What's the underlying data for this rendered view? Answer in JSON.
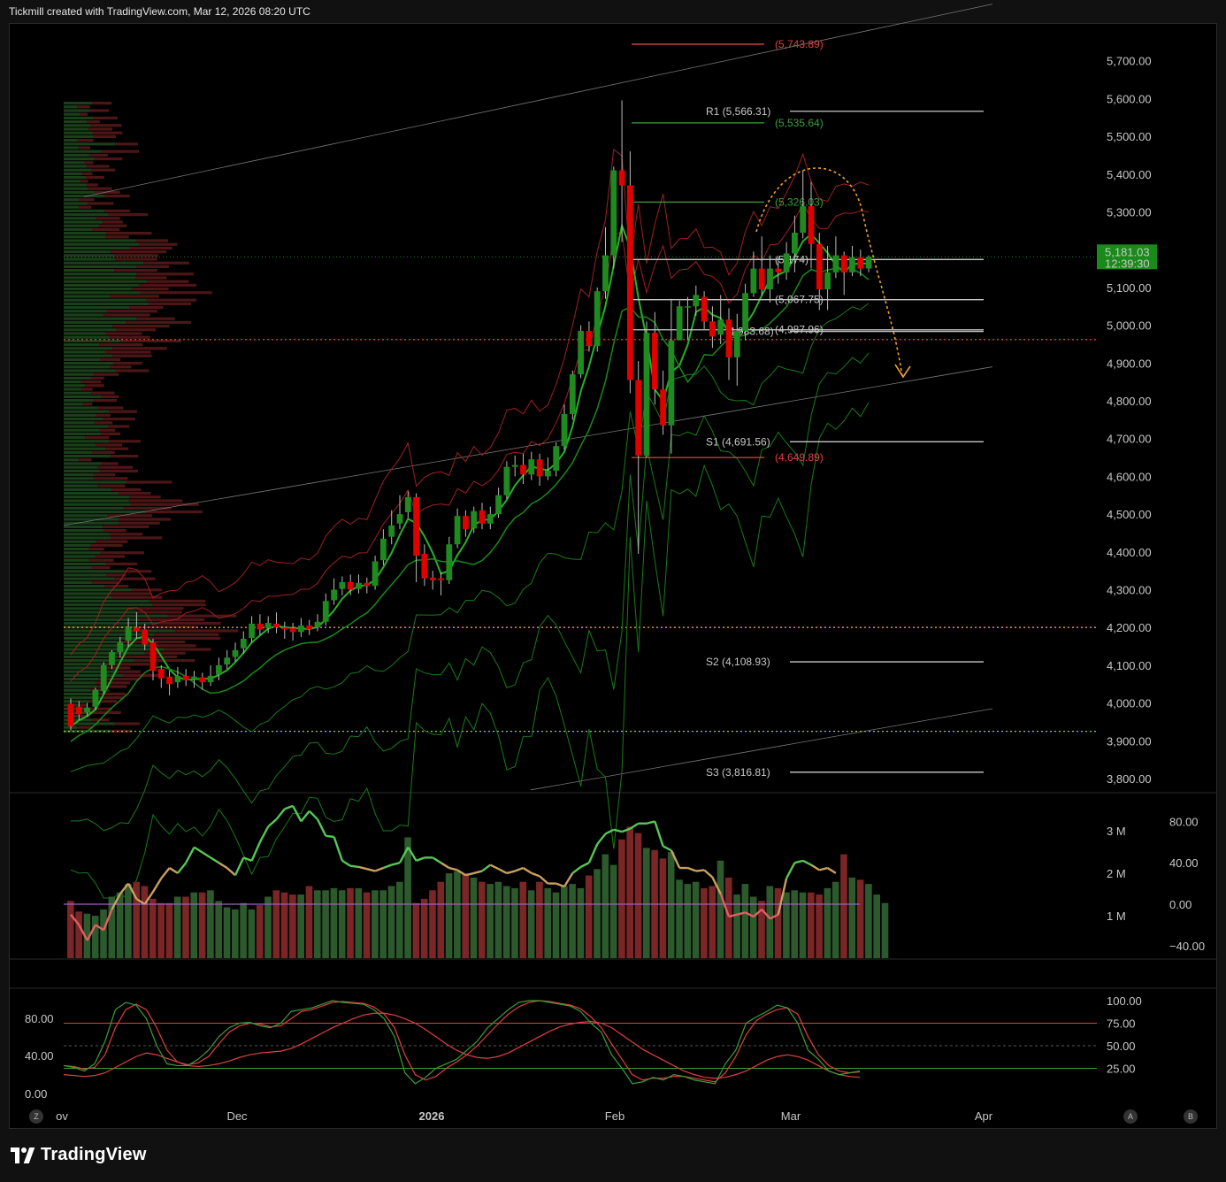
{
  "header": {
    "title": "Tickmill created with TradingView.com, Mar 12, 2026 08:20 UTC"
  },
  "footer": {
    "brand": "TradingView"
  },
  "buttons": {
    "zoom": "Z",
    "auto": "A",
    "bottom_b": "B"
  },
  "colors": {
    "bull": "#1f8a1f",
    "bear": "#e00000",
    "background": "#000000",
    "forecast": "#f0a030",
    "resistance": "#e04040",
    "support_green": "#3aa03a",
    "pivot_line": "#c8c8c8",
    "price_tag": "#1a8a1a"
  },
  "chart_data": [
    {
      "type": "candlestick",
      "title": "",
      "ylim": [
        3770,
        5860
      ],
      "y_ticks": [
        "5,700.00",
        "5,600.00",
        "5,500.00",
        "5,400.00",
        "5,300.00",
        "5,200.00",
        "5,100.00",
        "5,000.00",
        "4,900.00",
        "4,800.00",
        "4,700.00",
        "4,600.00",
        "4,500.00",
        "4,400.00",
        "4,300.00",
        "4,200.00",
        "4,100.00",
        "4,000.00",
        "3,900.00",
        "3,800.00"
      ],
      "x_ticks": [
        "ov",
        "Dec",
        "2026",
        "Feb",
        "Mar",
        "Apr"
      ],
      "last_price": "5,181.03",
      "countdown": "12:39:30",
      "candles": [
        [
          3998,
          3938,
          4012,
          3928
        ],
        [
          3990,
          3970,
          4005,
          3955
        ],
        [
          3975,
          3988,
          4000,
          3965
        ],
        [
          3990,
          4035,
          4040,
          3982
        ],
        [
          4032,
          4100,
          4108,
          4025
        ],
        [
          4100,
          4135,
          4140,
          4090
        ],
        [
          4135,
          4160,
          4175,
          4120
        ],
        [
          4165,
          4200,
          4225,
          4150
        ],
        [
          4200,
          4190,
          4240,
          4170
        ],
        [
          4195,
          4155,
          4210,
          4140
        ],
        [
          4160,
          4085,
          4170,
          4060
        ],
        [
          4090,
          4065,
          4100,
          4040
        ],
        [
          4070,
          4050,
          4085,
          4020
        ],
        [
          4055,
          4072,
          4095,
          4040
        ],
        [
          4072,
          4060,
          4090,
          4045
        ],
        [
          4062,
          4070,
          4085,
          4040
        ],
        [
          4068,
          4055,
          4080,
          4035
        ],
        [
          4055,
          4072,
          4100,
          4045
        ],
        [
          4075,
          4100,
          4120,
          4060
        ],
        [
          4102,
          4120,
          4140,
          4090
        ],
        [
          4122,
          4140,
          4160,
          4110
        ],
        [
          4145,
          4170,
          4190,
          4130
        ],
        [
          4172,
          4210,
          4230,
          4160
        ],
        [
          4210,
          4195,
          4235,
          4180
        ],
        [
          4198,
          4212,
          4230,
          4185
        ],
        [
          4210,
          4200,
          4240,
          4185
        ],
        [
          4200,
          4195,
          4215,
          4170
        ],
        [
          4198,
          4188,
          4212,
          4165
        ],
        [
          4188,
          4205,
          4225,
          4175
        ],
        [
          4205,
          4195,
          4220,
          4180
        ],
        [
          4200,
          4215,
          4235,
          4190
        ],
        [
          4215,
          4270,
          4290,
          4205
        ],
        [
          4272,
          4300,
          4330,
          4260
        ],
        [
          4302,
          4320,
          4335,
          4285
        ],
        [
          4320,
          4300,
          4340,
          4285
        ],
        [
          4302,
          4318,
          4340,
          4290
        ],
        [
          4318,
          4310,
          4332,
          4290
        ],
        [
          4310,
          4375,
          4390,
          4300
        ],
        [
          4378,
          4435,
          4460,
          4365
        ],
        [
          4440,
          4470,
          4510,
          4420
        ],
        [
          4475,
          4500,
          4550,
          4460
        ],
        [
          4505,
          4545,
          4560,
          4490
        ],
        [
          4545,
          4390,
          4555,
          4320
        ],
        [
          4395,
          4330,
          4420,
          4310
        ],
        [
          4332,
          4325,
          4350,
          4300
        ],
        [
          4330,
          4325,
          4345,
          4285
        ],
        [
          4325,
          4420,
          4440,
          4315
        ],
        [
          4420,
          4495,
          4515,
          4410
        ],
        [
          4495,
          4460,
          4510,
          4440
        ],
        [
          4462,
          4508,
          4520,
          4450
        ],
        [
          4510,
          4475,
          4530,
          4460
        ],
        [
          4475,
          4500,
          4520,
          4460
        ],
        [
          4500,
          4550,
          4570,
          4490
        ],
        [
          4550,
          4625,
          4640,
          4540
        ],
        [
          4625,
          4630,
          4655,
          4600
        ],
        [
          4630,
          4605,
          4660,
          4580
        ],
        [
          4605,
          4645,
          4665,
          4590
        ],
        [
          4645,
          4600,
          4660,
          4575
        ],
        [
          4600,
          4615,
          4650,
          4590
        ],
        [
          4615,
          4680,
          4690,
          4600
        ],
        [
          4680,
          4765,
          4790,
          4670
        ],
        [
          4765,
          4870,
          4880,
          4750
        ],
        [
          4870,
          4985,
          5000,
          4860
        ],
        [
          4985,
          4945,
          5010,
          4930
        ],
        [
          4945,
          5090,
          5100,
          4930
        ],
        [
          5090,
          5185,
          5260,
          5070
        ],
        [
          5185,
          5410,
          5420,
          5150
        ],
        [
          5410,
          5370,
          5595,
          5220
        ],
        [
          5370,
          4855,
          5460,
          4820
        ],
        [
          4855,
          4655,
          4905,
          4395
        ],
        [
          4655,
          4980,
          5010,
          4650
        ],
        [
          4980,
          4830,
          5035,
          4790
        ],
        [
          4830,
          4735,
          4880,
          4710
        ],
        [
          4735,
          4960,
          5070,
          4660
        ],
        [
          4960,
          5050,
          5065,
          4960
        ],
        [
          5050,
          5050,
          5075,
          4960
        ],
        [
          5050,
          5080,
          5105,
          5025
        ],
        [
          5075,
          5010,
          5090,
          4990
        ],
        [
          5010,
          4970,
          5050,
          4940
        ],
        [
          4975,
          5015,
          5080,
          4950
        ],
        [
          5015,
          4915,
          5045,
          4855
        ],
        [
          4915,
          4985,
          5030,
          4840
        ],
        [
          4985,
          5085,
          5110,
          4960
        ],
        [
          5085,
          5150,
          5195,
          5075
        ],
        [
          5150,
          5095,
          5235,
          5080
        ],
        [
          5095,
          5150,
          5185,
          5060
        ],
        [
          5150,
          5140,
          5180,
          5110
        ],
        [
          5140,
          5190,
          5220,
          5120
        ],
        [
          5190,
          5245,
          5290,
          5140
        ],
        [
          5245,
          5315,
          5410,
          5230
        ],
        [
          5315,
          5215,
          5380,
          5150
        ],
        [
          5215,
          5095,
          5245,
          5040
        ],
        [
          5095,
          5140,
          5210,
          5040
        ],
        [
          5140,
          5185,
          5235,
          5125
        ],
        [
          5185,
          5140,
          5195,
          5080
        ],
        [
          5140,
          5180,
          5210,
          5130
        ],
        [
          5180,
          5150,
          5200,
          5130
        ],
        [
          5150,
          5181,
          5185,
          5140
        ]
      ],
      "levels": [
        {
          "label": "(5,743.89)",
          "value": 5743.89,
          "color": "#e04040"
        },
        {
          "label": "R1 (5,566.31)",
          "value": 5566.31,
          "color": "#c8c8c8"
        },
        {
          "label": "(5,535.64)",
          "value": 5535.64,
          "color": "#3aa03a"
        },
        {
          "label": "(5,326.03)",
          "value": 5326.03,
          "color": "#3aa03a"
        },
        {
          "label": "(5,174)",
          "value": 5174,
          "color": "#c8c8c8"
        },
        {
          "label": "(5,067.75)",
          "value": 5067.75,
          "color": "#c8c8c8"
        },
        {
          "label": "(4,983.68)",
          "value": 4983.68,
          "color": "#c8c8c8"
        },
        {
          "label": "(4,987.96)",
          "value": 4987.96,
          "color": "#c8c8c8"
        },
        {
          "label": "S1 (4,691.56)",
          "value": 4691.56,
          "color": "#c8c8c8"
        },
        {
          "label": "(4,649.89)",
          "value": 4649.89,
          "color": "#e04040"
        },
        {
          "label": "S2 (4,108.93)",
          "value": 4108.93,
          "color": "#c8c8c8"
        },
        {
          "label": "S3 (3,816.81)",
          "value": 3816.81,
          "color": "#c8c8c8"
        }
      ],
      "horizontal_dotted": [
        {
          "value": 4962,
          "color": "#ff3030"
        },
        {
          "value": 4200,
          "color": "#f0a030"
        },
        {
          "value": 3925,
          "color": "#9ad04a"
        }
      ]
    },
    {
      "type": "bar",
      "title": "",
      "volume_ticks": [
        "3 M",
        "2 M",
        "1 M"
      ],
      "rsi_ticks": [
        "80.00",
        "40.00",
        "0.00",
        "−40.00"
      ],
      "volume_max": 3.4,
      "volumes": [
        1.35,
        1.1,
        1.05,
        1.0,
        1.15,
        1.45,
        1.55,
        1.75,
        1.8,
        1.7,
        1.4,
        1.3,
        1.3,
        1.45,
        1.45,
        1.55,
        1.55,
        1.6,
        1.35,
        1.2,
        1.15,
        1.3,
        1.15,
        1.25,
        1.45,
        1.6,
        1.55,
        1.5,
        1.5,
        1.7,
        1.6,
        1.6,
        1.65,
        1.6,
        1.65,
        1.65,
        1.55,
        1.6,
        1.6,
        1.7,
        1.8,
        2.85,
        1.3,
        1.4,
        1.6,
        1.8,
        2.0,
        2.05,
        2.0,
        1.9,
        1.8,
        1.75,
        1.8,
        1.7,
        1.65,
        1.8,
        1.6,
        1.8,
        1.65,
        1.55,
        1.7,
        1.75,
        1.65,
        1.95,
        2.1,
        2.45,
        2.2,
        2.8,
        3.1,
        2.95,
        2.6,
        2.55,
        2.35,
        2.5,
        1.85,
        1.75,
        1.8,
        1.65,
        1.7,
        2.3,
        1.9,
        1.5,
        1.75,
        1.45,
        1.35,
        1.7,
        1.65,
        1.55,
        1.6,
        1.55,
        1.55,
        1.5,
        1.65,
        1.8,
        2.45,
        1.9,
        1.85,
        1.75,
        1.5,
        1.3
      ],
      "rsi": [
        -10,
        -20,
        -35,
        -20,
        -25,
        -5,
        10,
        20,
        5,
        0,
        12,
        25,
        35,
        30,
        40,
        55,
        50,
        45,
        40,
        35,
        28,
        45,
        42,
        60,
        75,
        82,
        92,
        95,
        80,
        90,
        82,
        66,
        65,
        42,
        37,
        36,
        34,
        32,
        35,
        38,
        40,
        55,
        42,
        45,
        45,
        40,
        35,
        33,
        28,
        30,
        32,
        38,
        34,
        30,
        32,
        35,
        30,
        27,
        20,
        20,
        17,
        30,
        36,
        40,
        58,
        68,
        72,
        70,
        73,
        78,
        78,
        80,
        56,
        52,
        35,
        35,
        32,
        33,
        26,
        10,
        -12,
        -10,
        -8,
        -12,
        -5,
        -14,
        -10,
        25,
        40,
        42,
        38,
        33,
        35,
        30
      ],
      "rsi_mid": 0
    },
    {
      "type": "line",
      "title": "",
      "left_ticks": [
        "80.00",
        "40.00",
        "0.00"
      ],
      "right_ticks": [
        "100.00",
        "75.00",
        "50.00",
        "25.00"
      ],
      "overbought": 75,
      "oversold": 25,
      "k": [
        28,
        26,
        22,
        30,
        55,
        90,
        98,
        95,
        80,
        50,
        30,
        28,
        28,
        35,
        45,
        60,
        70,
        75,
        76,
        72,
        70,
        75,
        88,
        90,
        92,
        96,
        100,
        98,
        97,
        96,
        90,
        80,
        60,
        20,
        8,
        15,
        25,
        30,
        35,
        45,
        55,
        70,
        80,
        90,
        98,
        100,
        100,
        98,
        96,
        94,
        88,
        75,
        65,
        40,
        25,
        8,
        10,
        15,
        12,
        18,
        16,
        12,
        10,
        8,
        30,
        45,
        75,
        82,
        88,
        95,
        92,
        75,
        45,
        35,
        22,
        18,
        20,
        22
      ],
      "d": [
        28,
        27,
        24,
        26,
        40,
        70,
        90,
        96,
        90,
        70,
        45,
        32,
        29,
        31,
        38,
        52,
        65,
        72,
        75,
        74,
        71,
        72,
        80,
        88,
        90,
        94,
        98,
        99,
        98,
        97,
        93,
        85,
        70,
        40,
        18,
        12,
        16,
        25,
        32,
        40,
        50,
        62,
        74,
        85,
        93,
        98,
        100,
        99,
        97,
        95,
        91,
        82,
        70,
        52,
        35,
        18,
        12,
        14,
        14,
        16,
        16,
        14,
        12,
        10,
        20,
        38,
        62,
        78,
        85,
        90,
        92,
        85,
        60,
        40,
        28,
        22,
        20,
        21
      ],
      "slow": [
        18,
        17,
        16,
        17,
        20,
        26,
        32,
        38,
        42,
        40,
        36,
        32,
        28,
        27,
        28,
        30,
        33,
        37,
        40,
        42,
        43,
        44,
        47,
        52,
        58,
        64,
        70,
        75,
        80,
        84,
        86,
        86,
        84,
        80,
        75,
        68,
        60,
        52,
        45,
        40,
        37,
        36,
        38,
        42,
        48,
        54,
        60,
        66,
        71,
        74,
        76,
        77,
        75,
        70,
        62,
        54,
        46,
        40,
        34,
        28,
        22,
        18,
        15,
        14,
        15,
        18,
        22,
        28,
        34,
        38,
        40,
        38,
        34,
        28,
        22,
        18,
        16,
        15
      ]
    }
  ]
}
